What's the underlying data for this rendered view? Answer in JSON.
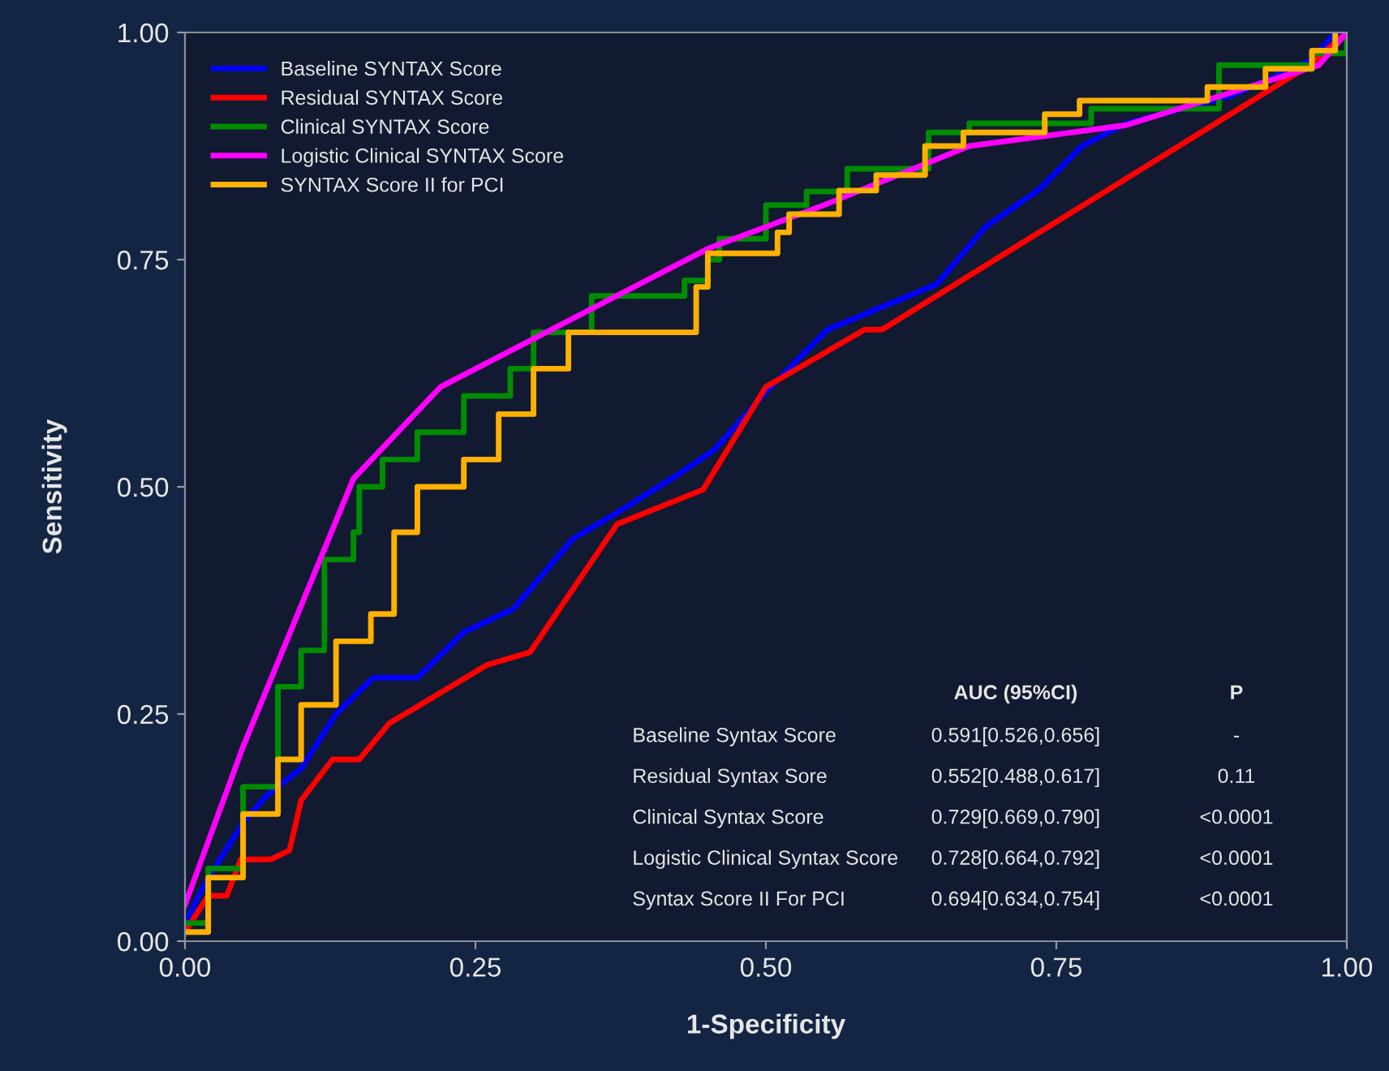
{
  "chart_data": {
    "type": "line",
    "xlabel": "1-Specificity",
    "ylabel": "Sensitivity",
    "xlim": [
      0,
      1
    ],
    "ylim": [
      0,
      1
    ],
    "xticks": [
      {
        "value": 0,
        "label": "0.00"
      },
      {
        "value": 0.25,
        "label": "0.25"
      },
      {
        "value": 0.5,
        "label": "0.50"
      },
      {
        "value": 0.75,
        "label": "0.75"
      },
      {
        "value": 1,
        "label": "1.00"
      }
    ],
    "yticks": [
      {
        "value": 0,
        "label": "0.00"
      },
      {
        "value": 0.25,
        "label": "0.25"
      },
      {
        "value": 0.5,
        "label": "0.50"
      },
      {
        "value": 0.75,
        "label": "0.75"
      },
      {
        "value": 1,
        "label": "1.00"
      }
    ],
    "grid": false,
    "legend": "top left",
    "marker": "none",
    "line_style": "solid",
    "series": [
      {
        "name": "Baseline SYNTAX Score",
        "color": "#0000ff",
        "type": "line",
        "x": [
          0,
          0.02,
          0.05,
          0.07,
          0.1,
          0.13,
          0.162,
          0.2,
          0.24,
          0.283,
          0.334,
          0.37,
          0.42,
          0.455,
          0.502,
          0.553,
          0.647,
          0.689,
          0.735,
          0.772,
          0.81,
          0.9,
          0.97,
          0.99,
          1
        ],
        "values": [
          0.02,
          0.07,
          0.13,
          0.16,
          0.19,
          0.25,
          0.29,
          0.29,
          0.34,
          0.366,
          0.443,
          0.47,
          0.51,
          0.54,
          0.607,
          0.673,
          0.723,
          0.786,
          0.827,
          0.875,
          0.9,
          0.93,
          0.97,
          1,
          1
        ]
      },
      {
        "name": "Residual SYNTAX Score",
        "color": "#ff0000",
        "type": "line",
        "x": [
          0,
          0.02,
          0.036,
          0.048,
          0.074,
          0.09,
          0.1,
          0.127,
          0.15,
          0.176,
          0.213,
          0.26,
          0.297,
          0.372,
          0.446,
          0.5,
          0.585,
          0.6,
          0.968,
          1
        ],
        "values": [
          0.01,
          0.05,
          0.05,
          0.09,
          0.09,
          0.1,
          0.155,
          0.2,
          0.2,
          0.24,
          0.268,
          0.304,
          0.318,
          0.459,
          0.497,
          0.61,
          0.673,
          0.673,
          0.964,
          1
        ]
      },
      {
        "name": "Clinical SYNTAX Score",
        "color": "#008c00",
        "type": "step",
        "x": [
          0,
          0.02,
          0.05,
          0.08,
          0.1,
          0.12,
          0.145,
          0.15,
          0.17,
          0.2,
          0.24,
          0.28,
          0.3,
          0.35,
          0.43,
          0.45,
          0.46,
          0.5,
          0.535,
          0.57,
          0.64,
          0.675,
          0.78,
          0.89,
          0.97,
          1
        ],
        "values": [
          0.02,
          0.08,
          0.17,
          0.28,
          0.32,
          0.42,
          0.45,
          0.5,
          0.53,
          0.56,
          0.6,
          0.63,
          0.67,
          0.71,
          0.727,
          0.75,
          0.773,
          0.81,
          0.825,
          0.85,
          0.89,
          0.9,
          0.916,
          0.964,
          0.977,
          1
        ]
      },
      {
        "name": "Logistic Clinical SYNTAX Score",
        "color": "#ff00ff",
        "type": "line",
        "x": [
          0,
          0.05,
          0.145,
          0.22,
          0.45,
          0.55,
          0.675,
          0.81,
          0.976,
          1
        ],
        "values": [
          0.04,
          0.214,
          0.509,
          0.61,
          0.762,
          0.81,
          0.875,
          0.898,
          0.964,
          1
        ]
      },
      {
        "name": "SYNTAX Score II for PCI",
        "color": "#ffb000",
        "type": "step",
        "x": [
          0,
          0.02,
          0.05,
          0.08,
          0.1,
          0.13,
          0.16,
          0.18,
          0.2,
          0.24,
          0.27,
          0.3,
          0.33,
          0.43,
          0.44,
          0.45,
          0.51,
          0.52,
          0.563,
          0.595,
          0.637,
          0.67,
          0.74,
          0.77,
          0.88,
          0.93,
          0.97,
          0.99
        ],
        "values": [
          0.01,
          0.07,
          0.14,
          0.2,
          0.26,
          0.33,
          0.36,
          0.45,
          0.5,
          0.53,
          0.58,
          0.63,
          0.67,
          0.67,
          0.72,
          0.757,
          0.78,
          0.8,
          0.826,
          0.843,
          0.875,
          0.89,
          0.91,
          0.925,
          0.94,
          0.96,
          0.98,
          1
        ]
      }
    ],
    "annotations": [
      "AUC (95%CI)",
      "P",
      "Baseline Syntax Score",
      "0.591[0.526,0.656]",
      "-",
      "Residual Syntax Sore",
      "0.552[0.488,0.617]",
      "0.11",
      "Clinical Syntax Score",
      "0.729[0.669,0.790]",
      "<0.0001",
      "Logistic Clinical Syntax Score",
      "0.728[0.664,0.792]",
      "<0.0001",
      "Syntax Score II For PCI",
      "0.694[0.634,0.754]",
      "<0.0001"
    ]
  }
}
